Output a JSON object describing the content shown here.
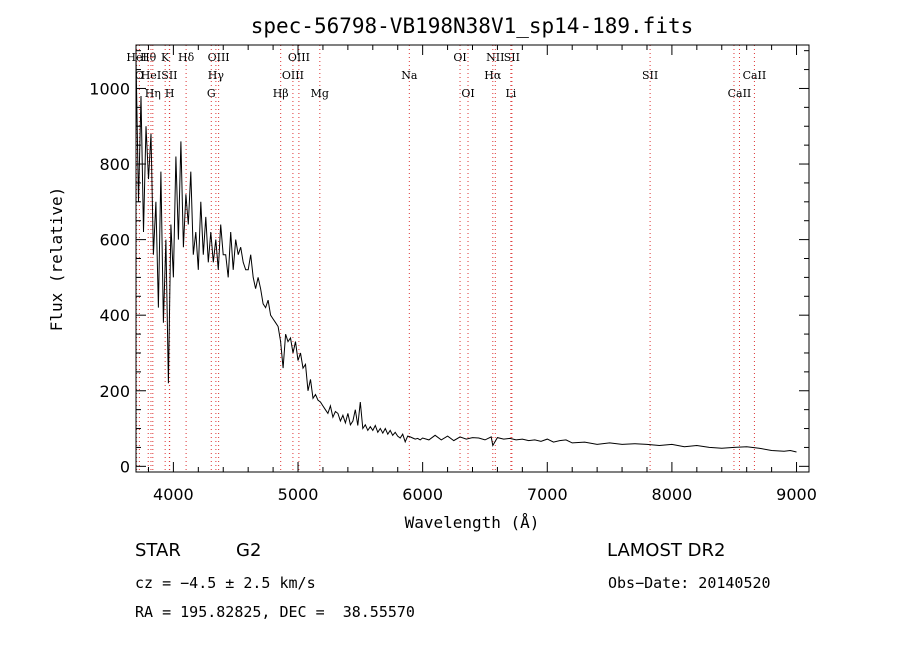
{
  "chart_data": {
    "type": "line",
    "title": "spec-56798-VB198N38V1_sp14-189.fits",
    "xlabel": "Wavelength (Å)",
    "ylabel": "Flux (relative)",
    "xlim": [
      3700,
      9100
    ],
    "ylim": [
      -15,
      1115
    ],
    "xticks": [
      4000,
      5000,
      6000,
      7000,
      8000,
      9000
    ],
    "xtick_labels": [
      "4000",
      "5000",
      "6000",
      "7000",
      "8000",
      "9000"
    ],
    "yticks": [
      0,
      200,
      400,
      600,
      800,
      1000
    ],
    "ytick_labels": [
      "0",
      "200",
      "400",
      "600",
      "800",
      "1000"
    ],
    "grid": false,
    "series": [
      {
        "color": "#000000",
        "x": [
          3700,
          3720,
          3740,
          3760,
          3780,
          3800,
          3820,
          3840,
          3860,
          3880,
          3900,
          3920,
          3940,
          3960,
          3980,
          4000,
          4020,
          4040,
          4060,
          4080,
          4100,
          4120,
          4140,
          4160,
          4180,
          4200,
          4220,
          4240,
          4260,
          4280,
          4300,
          4320,
          4340,
          4360,
          4380,
          4400,
          4420,
          4440,
          4460,
          4480,
          4500,
          4520,
          4540,
          4560,
          4580,
          4600,
          4620,
          4640,
          4660,
          4680,
          4700,
          4720,
          4740,
          4760,
          4780,
          4800,
          4820,
          4840,
          4860,
          4880,
          4900,
          4920,
          4940,
          4960,
          4980,
          5000,
          5020,
          5040,
          5060,
          5080,
          5100,
          5120,
          5140,
          5160,
          5180,
          5200,
          5220,
          5240,
          5260,
          5280,
          5300,
          5320,
          5340,
          5360,
          5380,
          5400,
          5420,
          5440,
          5460,
          5480,
          5500,
          5520,
          5540,
          5560,
          5580,
          5600,
          5620,
          5640,
          5660,
          5680,
          5700,
          5720,
          5740,
          5760,
          5780,
          5800,
          5820,
          5840,
          5860,
          5880,
          5900,
          5920,
          5940,
          5960,
          5980,
          6000,
          6050,
          6100,
          6150,
          6200,
          6250,
          6300,
          6350,
          6400,
          6450,
          6500,
          6550,
          6563,
          6600,
          6650,
          6700,
          6750,
          6800,
          6850,
          6900,
          6950,
          7000,
          7050,
          7100,
          7150,
          7200,
          7300,
          7400,
          7500,
          7600,
          7700,
          7800,
          7900,
          8000,
          8100,
          8200,
          8300,
          8400,
          8500,
          8600,
          8700,
          8800,
          8900,
          8950,
          9000
        ],
        "y": [
          1080,
          700,
          980,
          620,
          900,
          760,
          880,
          560,
          700,
          420,
          780,
          380,
          600,
          220,
          640,
          500,
          820,
          600,
          860,
          580,
          720,
          640,
          780,
          560,
          620,
          520,
          700,
          560,
          660,
          540,
          620,
          540,
          600,
          520,
          640,
          560,
          560,
          500,
          620,
          520,
          600,
          560,
          580,
          540,
          520,
          520,
          560,
          500,
          470,
          500,
          470,
          430,
          420,
          440,
          400,
          390,
          380,
          370,
          330,
          260,
          350,
          330,
          340,
          300,
          330,
          280,
          300,
          260,
          270,
          200,
          230,
          180,
          190,
          175,
          170,
          160,
          150,
          140,
          160,
          130,
          145,
          140,
          120,
          135,
          115,
          140,
          110,
          120,
          150,
          108,
          170,
          100,
          110,
          95,
          105,
          95,
          108,
          90,
          100,
          88,
          100,
          85,
          95,
          82,
          90,
          80,
          75,
          85,
          65,
          80,
          78,
          75,
          72,
          74,
          70,
          75,
          70,
          82,
          70,
          80,
          68,
          78,
          72,
          76,
          75,
          70,
          78,
          55,
          76,
          72,
          74,
          70,
          72,
          68,
          70,
          66,
          72,
          64,
          68,
          70,
          62,
          64,
          58,
          62,
          58,
          60,
          58,
          55,
          58,
          52,
          55,
          50,
          48,
          50,
          52,
          48,
          42,
          40,
          42,
          38
        ]
      }
    ],
    "line_markers": [
      {
        "label": "HeI",
        "x": 3705,
        "row": 1
      },
      {
        "label": "Hθ",
        "x": 3798,
        "row": 1
      },
      {
        "label": "O",
        "x": 3727,
        "row": 2
      },
      {
        "label": "HeI",
        "x": 3820,
        "row": 2
      },
      {
        "label": "Hη",
        "x": 3835,
        "row": 3
      },
      {
        "label": "K",
        "x": 3934,
        "row": 1
      },
      {
        "label": "SII",
        "x": 3968,
        "row": 2
      },
      {
        "label": "H",
        "x": 3970,
        "row": 3
      },
      {
        "label": "Hδ",
        "x": 4102,
        "row": 1
      },
      {
        "label": "OIII",
        "x": 4363,
        "row": 1
      },
      {
        "label": "Hγ",
        "x": 4341,
        "row": 2
      },
      {
        "label": "G",
        "x": 4304,
        "row": 3
      },
      {
        "label": "Hβ",
        "x": 4861,
        "row": 3
      },
      {
        "label": "OIII",
        "x": 5007,
        "row": 1
      },
      {
        "label": "OIII",
        "x": 4959,
        "row": 2
      },
      {
        "label": "Mg",
        "x": 5175,
        "row": 3
      },
      {
        "label": "Na",
        "x": 5893,
        "row": 2
      },
      {
        "label": "OI",
        "x": 6300,
        "row": 1
      },
      {
        "label": "OI",
        "x": 6364,
        "row": 3
      },
      {
        "label": "NII",
        "x": 6583,
        "row": 1
      },
      {
        "label": "SII",
        "x": 6716,
        "row": 1
      },
      {
        "label": "Hα",
        "x": 6563,
        "row": 2
      },
      {
        "label": "Li",
        "x": 6708,
        "row": 3
      },
      {
        "label": "SII",
        "x": 7825,
        "row": 2
      },
      {
        "label": "CaII",
        "x": 8662,
        "row": 2
      },
      {
        "label": "CaII",
        "x": 8542,
        "row": 3
      },
      {
        "label": "",
        "x": 8498,
        "row": 0
      }
    ]
  },
  "footer": {
    "class_label": "STAR",
    "subclass": "G2",
    "survey": "LAMOST DR2",
    "cz": "cz = −4.5 ± 2.5 km/s",
    "obs_date": "Obs−Date: 20140520",
    "coords": "RA = 195.82825, DEC =  38.55570"
  }
}
